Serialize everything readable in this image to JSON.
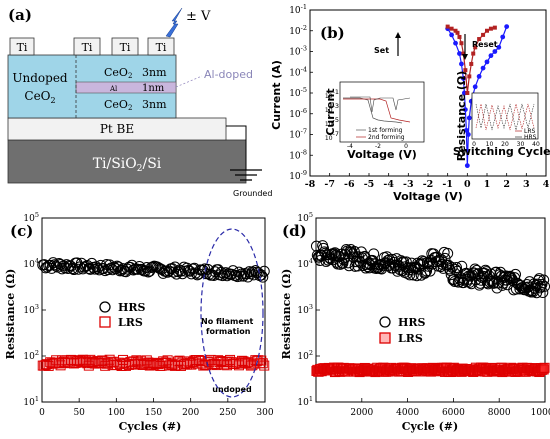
{
  "panel_a": {
    "label": "(a)",
    "electrodes": [
      "Ti",
      "Ti",
      "Ti",
      "Ti"
    ],
    "bias": "± V",
    "undoped_line1": "Undoped",
    "undoped_line2": "CeO",
    "undoped_sub": "2",
    "layer_top": "CeO",
    "layer_top_sub": "2",
    "layer_top_thick": "3nm",
    "layer_mid": "Al",
    "layer_mid_thick": "1nm",
    "layer_bot": "CeO",
    "layer_bot_sub": "2",
    "layer_bot_thick": "3nm",
    "al_doped": "Al-doped",
    "bottom_electrode": "Pt BE",
    "substrate": "Ti/SiO",
    "substrate_sub": "2",
    "substrate_end": "/Si",
    "ground": "Grounded",
    "colors": {
      "oxide": "#9fd5e8",
      "al": "#c9b6dd",
      "substrate": "#6f6f6f",
      "pt": "#f2f2f2"
    }
  },
  "chart_data": [
    {
      "panel": "(b)",
      "type": "line",
      "xlabel": "Voltage (V)",
      "ylabel": "Current (A)",
      "xlim": [
        -8,
        4
      ],
      "ylim_log10": [
        -9,
        -1
      ],
      "x_ticks": [
        "-8",
        "-7",
        "-6",
        "-5",
        "-4",
        "-3",
        "-2",
        "-1",
        "0",
        "1",
        "2",
        "3",
        "4"
      ],
      "y_ticks": [
        "10-9",
        "10-8",
        "10-7",
        "10-6",
        "10-5",
        "10-4",
        "10-3",
        "10-2",
        "10-1"
      ],
      "annotations": [
        "Set",
        "Reset"
      ],
      "series": [
        {
          "color": "#1a1aff",
          "x": [
            -1.0,
            -0.8,
            -0.6,
            -0.4,
            -0.3,
            -0.2,
            -0.15,
            -0.1,
            -0.05,
            0.0,
            0.05,
            0.1,
            0.2,
            0.4,
            0.6,
            0.8,
            1.0,
            1.2,
            1.4,
            1.6,
            1.8,
            2.0
          ],
          "y_log10": [
            -1.9,
            -2.2,
            -2.6,
            -3.1,
            -3.6,
            -4.3,
            -5.0,
            -5.8,
            -6.8,
            -8.5,
            -7.0,
            -6.2,
            -5.4,
            -4.7,
            -4.2,
            -3.8,
            -3.5,
            -3.2,
            -3.0,
            -2.8,
            -2.3,
            -1.8
          ]
        },
        {
          "color": "#b22222",
          "x": [
            -1.0,
            -0.8,
            -0.6,
            -0.5,
            -0.4,
            -0.3,
            -0.2,
            -0.1,
            0.0,
            0.1,
            0.2,
            0.3,
            0.4,
            0.6,
            0.8,
            1.0,
            1.2,
            1.4
          ],
          "y_log10": [
            -1.8,
            -1.9,
            -2.0,
            -2.1,
            -2.3,
            -2.6,
            -3.1,
            -3.9,
            -5.0,
            -4.2,
            -3.6,
            -3.1,
            -2.8,
            -2.4,
            -2.2,
            -2.0,
            -1.9,
            -1.85
          ]
        }
      ]
    },
    {
      "panel": "(b) inset left",
      "type": "line",
      "xlabel": "Voltage (V)",
      "ylabel": "Current",
      "x_ticks": [
        "-4",
        "-2",
        "0"
      ],
      "y_ticks": [
        "10-7",
        "10-5",
        "10-3",
        "10-1"
      ],
      "series": [
        {
          "name": "1st forming",
          "color": "#555555"
        },
        {
          "name": "2nd forming",
          "color": "#b22222"
        }
      ]
    },
    {
      "panel": "(b) inset right",
      "type": "scatter",
      "xlabel": "Switching Cycles",
      "ylabel": "Resistance (Ω)",
      "x_ticks": [
        "0",
        "10",
        "20",
        "30",
        "40"
      ],
      "series": [
        {
          "name": "LRS",
          "color": "#b22222"
        },
        {
          "name": "HRS",
          "color": "#333333"
        }
      ]
    },
    {
      "panel": "(c)",
      "type": "scatter",
      "xlabel": "Cycles (#)",
      "ylabel": "Resistance (Ω)",
      "xlim": [
        0,
        300
      ],
      "ylim_log10": [
        1,
        5
      ],
      "x_ticks": [
        "0",
        "50",
        "100",
        "150",
        "200",
        "250",
        "300"
      ],
      "y_ticks": [
        "101",
        "102",
        "103",
        "104",
        "105"
      ],
      "series": [
        {
          "name": "HRS",
          "marker": "open-circle",
          "color": "#000000",
          "level_log10": 3.92,
          "spread": 0.08,
          "n": 150
        },
        {
          "name": "LRS",
          "marker": "open-square",
          "color": "#dd0000",
          "level_log10": 1.85,
          "spread": 0.07,
          "n": 150
        }
      ],
      "annotations": [
        "No filament formation",
        "undoped"
      ]
    },
    {
      "panel": "(d)",
      "type": "scatter",
      "xlabel": "Cycle (#)",
      "ylabel": "Resistance (Ω)",
      "xlim": [
        0,
        10000
      ],
      "ylim_log10": [
        1,
        5
      ],
      "x_ticks": [
        "2000",
        "4000",
        "6000",
        "8000",
        "10000"
      ],
      "y_ticks": [
        "101",
        "102",
        "103",
        "104",
        "105"
      ],
      "series": [
        {
          "name": "HRS",
          "marker": "open-circle",
          "color": "#000000",
          "level_log10": 3.9,
          "spread": 0.18,
          "n": 260
        },
        {
          "name": "LRS",
          "marker": "open-square",
          "color": "#dd0000",
          "level_log10": 1.7,
          "spread": 0.05,
          "n": 260
        }
      ]
    }
  ]
}
